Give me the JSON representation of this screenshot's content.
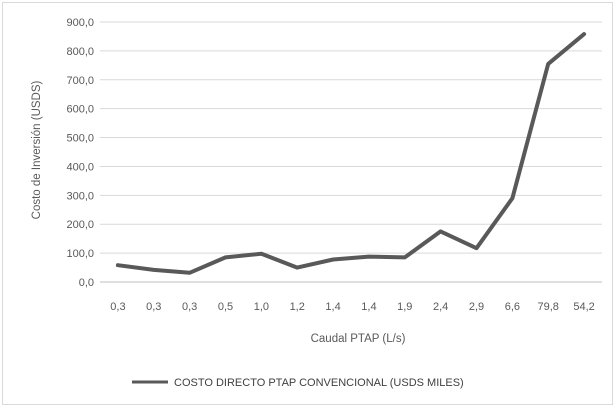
{
  "chart_data": {
    "type": "line",
    "title": "",
    "xlabel": "Caudal PTAP (L/s)",
    "ylabel": "Costo de Inversión (USDS)",
    "categories": [
      "0,3",
      "0,3",
      "0,3",
      "0,5",
      "1,0",
      "1,2",
      "1,4",
      "1,4",
      "1,9",
      "2,4",
      "2,9",
      "6,6",
      "79,8",
      "54,2"
    ],
    "series": [
      {
        "name": "COSTO DIRECTO PTAP CONVENCIONAL (USDS MILES)",
        "values": [
          58,
          42,
          32,
          85,
          98,
          50,
          78,
          88,
          85,
          175,
          117,
          290,
          755,
          858
        ],
        "color": "#595959"
      }
    ],
    "ylim": [
      0,
      900
    ],
    "yticks": [
      "0,0",
      "100,0",
      "200,0",
      "300,0",
      "400,0",
      "500,0",
      "600,0",
      "700,0",
      "800,0",
      "900,0"
    ],
    "grid": true,
    "legend_position": "bottom"
  }
}
